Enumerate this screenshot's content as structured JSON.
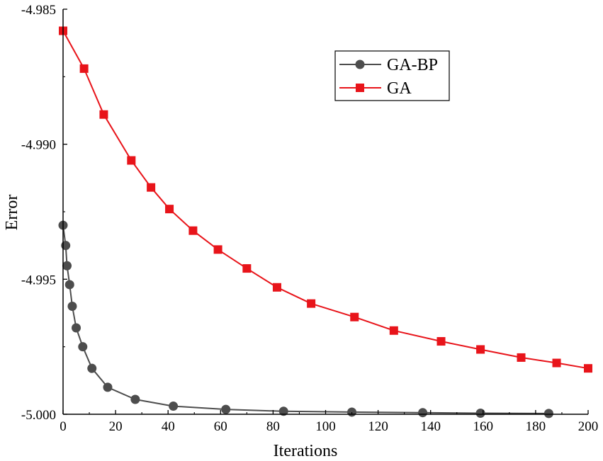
{
  "chart_data": {
    "type": "line",
    "title": "",
    "xlabel": "Iterations",
    "ylabel": "Error",
    "xlim": [
      0,
      200
    ],
    "ylim": [
      -5.0,
      -4.985
    ],
    "xticks": [
      0,
      20,
      40,
      60,
      80,
      100,
      120,
      140,
      160,
      180,
      200
    ],
    "xtick_labels": [
      "0",
      "20",
      "40",
      "60",
      "80",
      "100",
      "120",
      "140",
      "160",
      "180",
      "200"
    ],
    "yticks": [
      -5.0,
      -4.995,
      -4.99,
      -4.985
    ],
    "ytick_labels": [
      "-5.000",
      "-4.995",
      "-4.990",
      "-4.985"
    ],
    "grid": false,
    "legend_position": "top-right",
    "series": [
      {
        "name": "GA-BP",
        "color": "#4d4d4d",
        "marker": "circle",
        "x": [
          0,
          1,
          1.5,
          2.5,
          3.5,
          5,
          7.5,
          11,
          17,
          27.5,
          42,
          62,
          84,
          110,
          137,
          159,
          185
        ],
        "y": [
          -4.993,
          -4.99375,
          -4.9945,
          -4.9952,
          -4.996,
          -4.9968,
          -4.9975,
          -4.9983,
          -4.999,
          -4.99945,
          -4.9997,
          -4.99982,
          -4.99989,
          -4.99992,
          -4.99994,
          -4.99996,
          -4.99997
        ]
      },
      {
        "name": "GA",
        "color": "#e8141a",
        "marker": "square",
        "x": [
          0,
          8,
          15.5,
          26,
          33.5,
          40.5,
          49.5,
          59,
          70,
          81.5,
          94.5,
          111,
          126,
          144,
          159,
          174.5,
          188,
          201
        ],
        "y": [
          -4.9858,
          -4.9872,
          -4.9889,
          -4.9906,
          -4.9916,
          -4.9924,
          -4.9932,
          -4.9939,
          -4.9946,
          -4.9953,
          -4.9959,
          -4.9964,
          -4.9969,
          -4.9973,
          -4.9976,
          -4.9979,
          -4.9981,
          -4.9983
        ]
      }
    ]
  }
}
